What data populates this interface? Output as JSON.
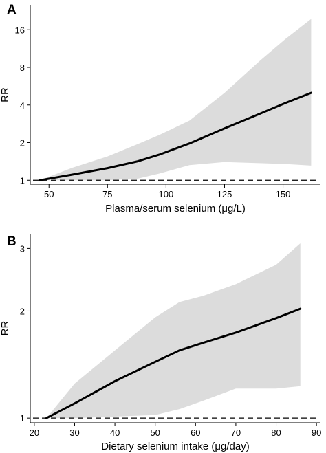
{
  "chart_data": [
    {
      "panel": "A",
      "type": "line",
      "xlabel": "Plasma/serum selenium (μg/L)",
      "ylabel": "RR",
      "xlim": [
        42,
        166
      ],
      "ylim": [
        0.93,
        25
      ],
      "y_scale": "log2",
      "grid": false,
      "xticks": [
        50,
        75,
        100,
        125,
        150
      ],
      "yticks": [
        1,
        2,
        4,
        8,
        16
      ],
      "reference_line": 1,
      "series": [
        {
          "x": [
            46,
            60,
            75,
            88,
            97,
            110,
            125,
            140,
            151,
            162
          ],
          "values": [
            1.0,
            1.11,
            1.25,
            1.42,
            1.6,
            1.97,
            2.6,
            3.4,
            4.15,
            5.0
          ]
        }
      ],
      "ci_lower": [
        1.0,
        1.0,
        1.0,
        1.03,
        1.13,
        1.32,
        1.4,
        1.37,
        1.35,
        1.31
      ],
      "ci_upper": [
        1.0,
        1.26,
        1.55,
        1.95,
        2.3,
        3.0,
        5.0,
        9.0,
        13.5,
        19.5
      ]
    },
    {
      "panel": "B",
      "type": "line",
      "xlabel": "Dietary selenium intake (μg/day)",
      "ylabel": "RR",
      "xlim": [
        19,
        91
      ],
      "ylim": [
        0.97,
        3.3
      ],
      "y_scale": "log",
      "grid": false,
      "xticks": [
        20,
        30,
        40,
        50,
        60,
        70,
        80,
        90
      ],
      "yticks": [
        1,
        2,
        3
      ],
      "reference_line": 1,
      "series": [
        {
          "x": [
            23,
            30,
            40,
            50,
            56,
            62,
            70,
            80,
            86
          ],
          "values": [
            1.0,
            1.1,
            1.27,
            1.44,
            1.55,
            1.63,
            1.74,
            1.91,
            2.03
          ]
        }
      ],
      "ci_lower": [
        1.0,
        1.0,
        1.01,
        1.02,
        1.06,
        1.12,
        1.21,
        1.21,
        1.23
      ],
      "ci_upper": [
        1.0,
        1.25,
        1.55,
        1.92,
        2.12,
        2.21,
        2.38,
        2.7,
        3.1
      ]
    }
  ]
}
